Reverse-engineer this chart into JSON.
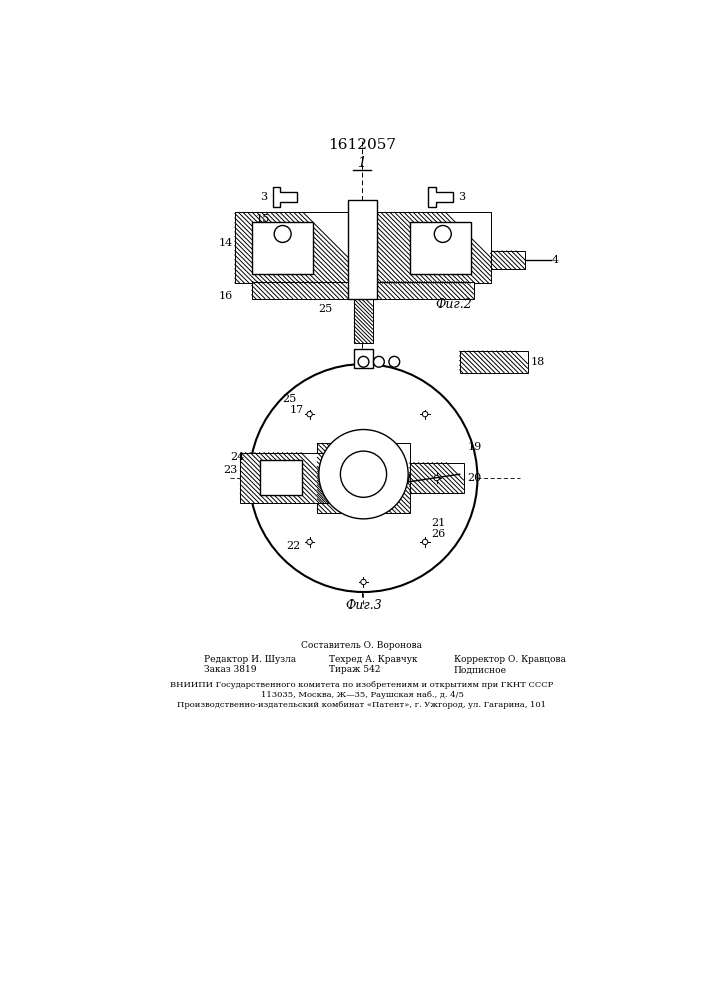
{
  "title": "1612057",
  "fig2_label": "Фиг.2",
  "fig3_label": "Фиг.3",
  "background_color": "#ffffff",
  "line_color": "#000000",
  "font_size_title": 11,
  "font_size_label": 9,
  "font_size_num": 8,
  "bottom_text_line1": "Составитель О. Воронова",
  "bottom_text_line2": "Редактор И. Шузла",
  "bottom_text_line3": "Техред А. Кравчук",
  "bottom_text_line4": "Корректор О. Кравцова",
  "bottom_text_line5": "Заказ 3819",
  "bottom_text_line6": "Тираж 542",
  "bottom_text_line7": "Подписное",
  "bottom_text_line8": "ВНИИПИ Государственного комитета по изобретениям и открытиям при ГКНТ СССР",
  "bottom_text_line9": "113035, Москва, Ж—35, Раушская наб., д. 4/5",
  "bottom_text_line10": "Производственно-издательский комбинат «Патент», г. Ужгород, ул. Гагарина, 101"
}
